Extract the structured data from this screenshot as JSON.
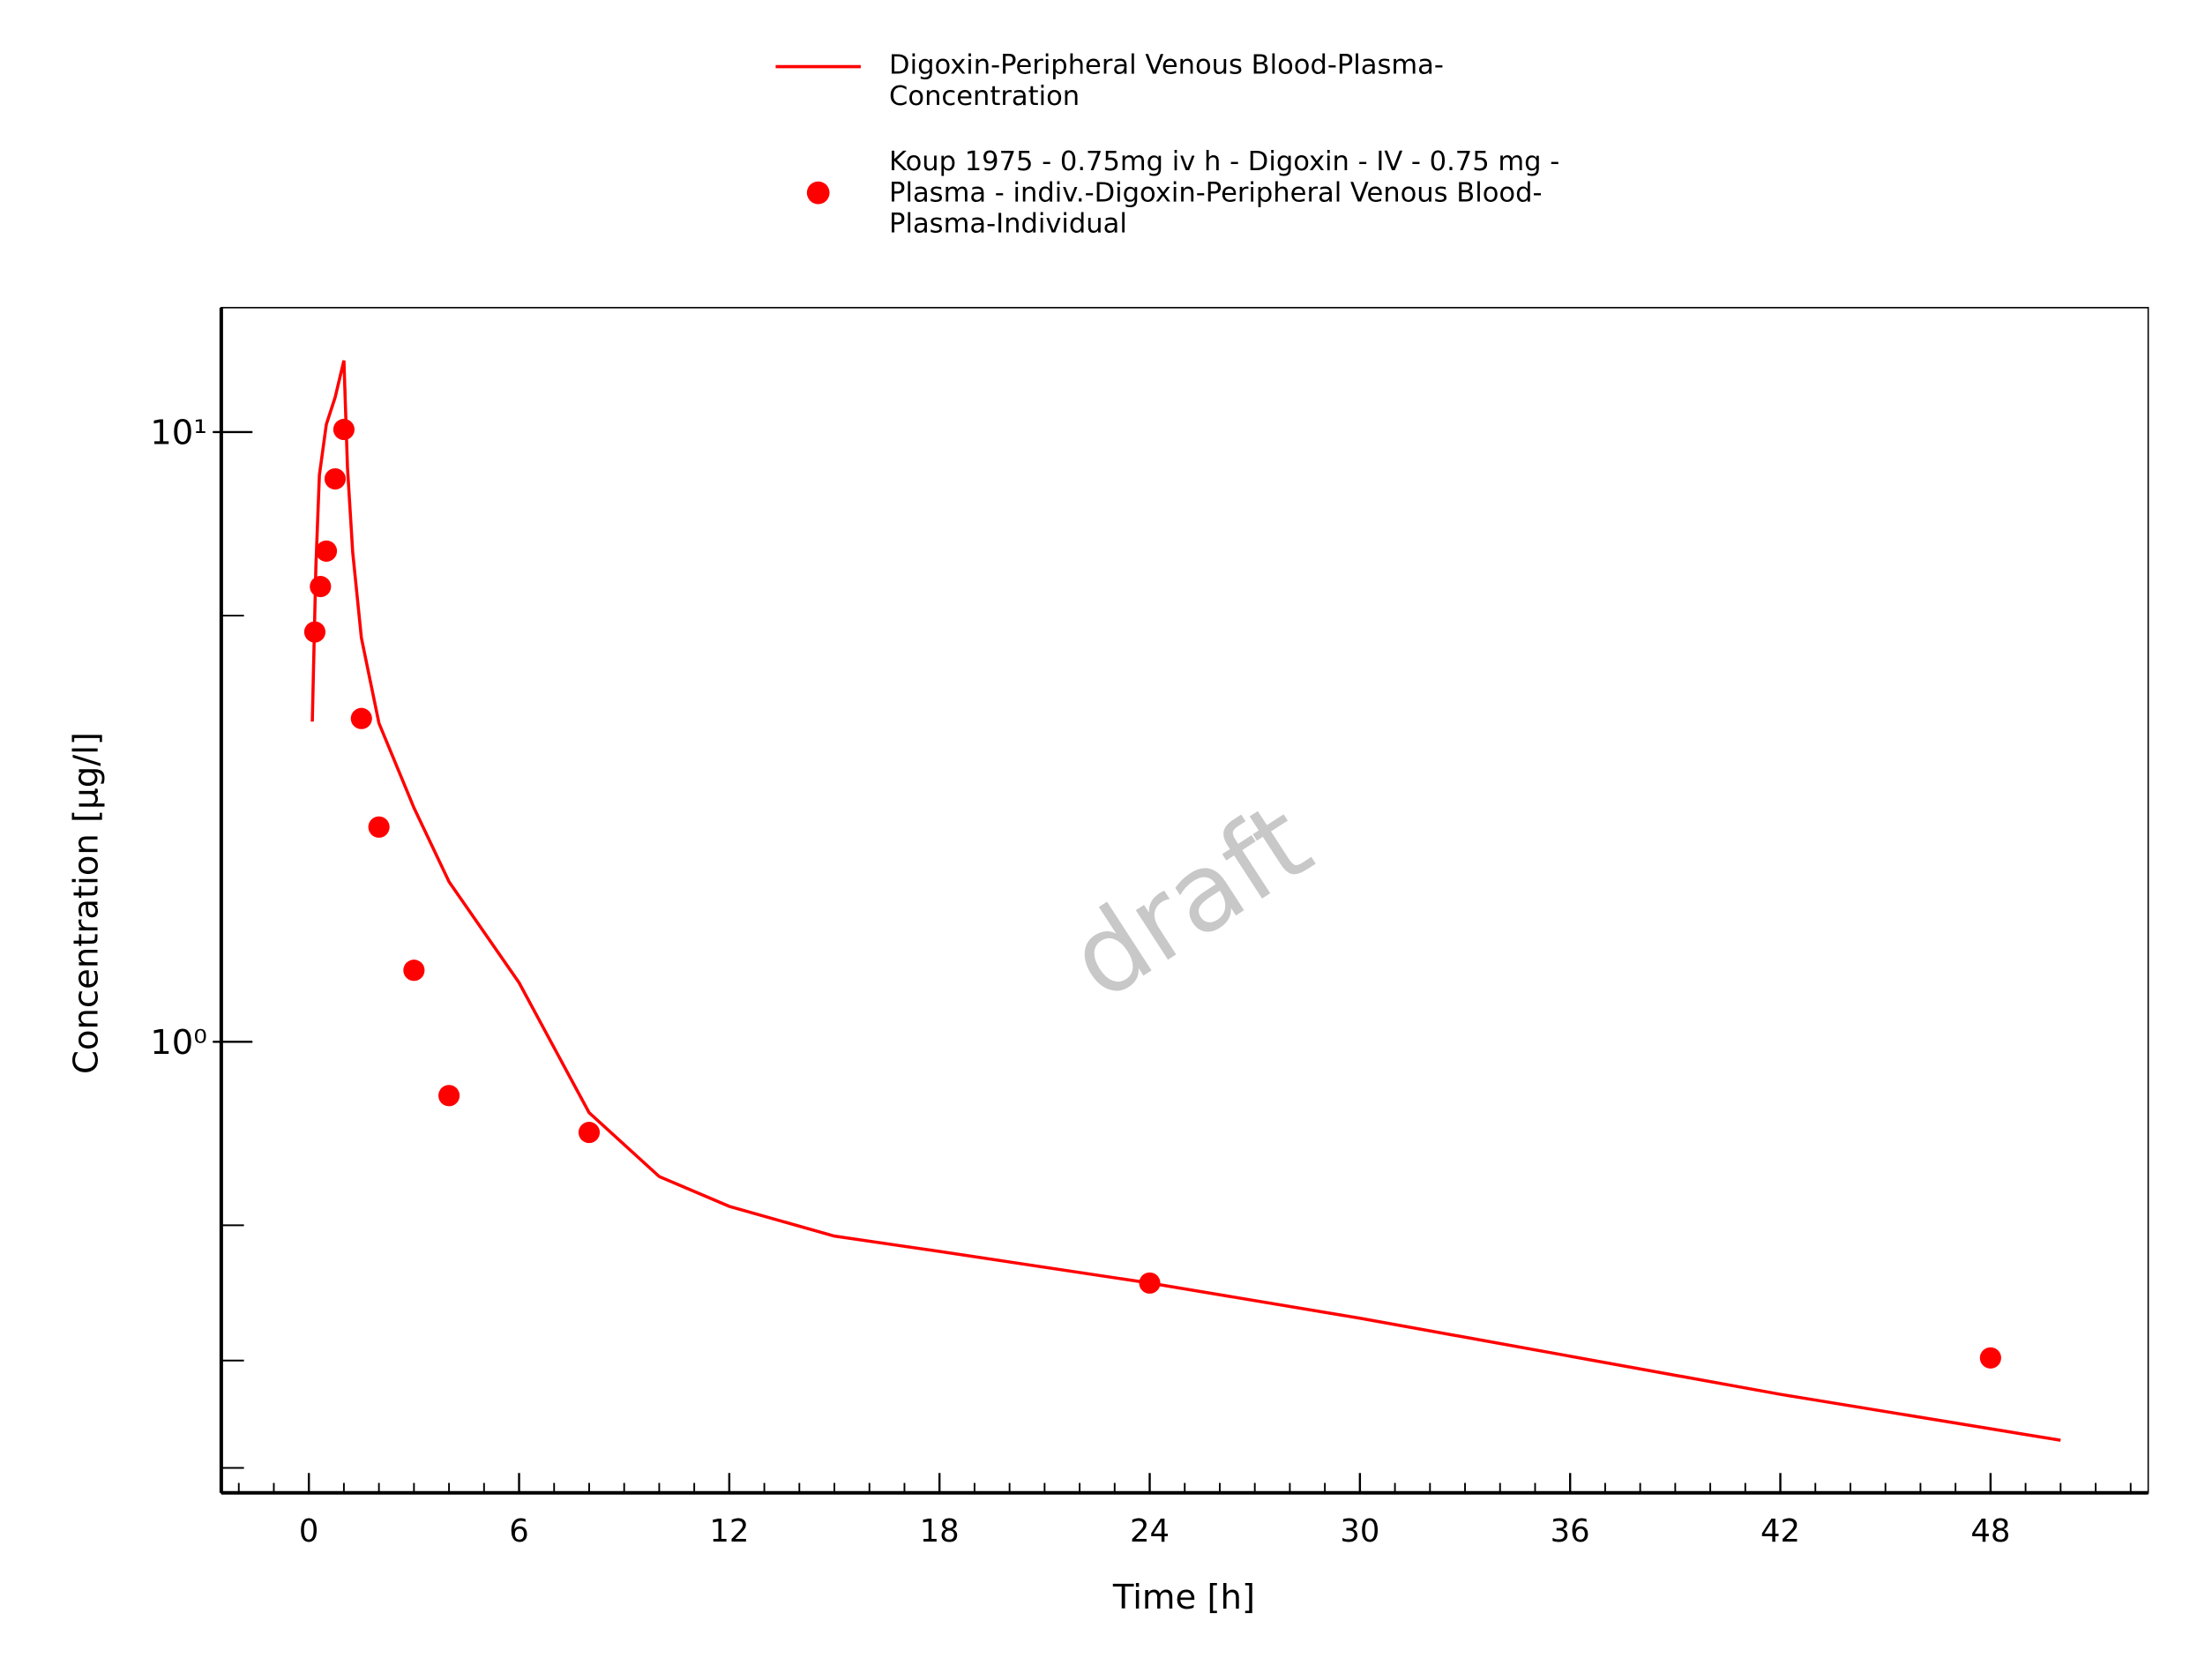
{
  "chart_data": {
    "type": "line",
    "xlabel": "Time [h]",
    "ylabel": "Concentration [µg/l]",
    "watermark": "draft",
    "xlim": [
      -2.5,
      52.5
    ],
    "xticks": [
      0,
      6,
      12,
      18,
      24,
      30,
      36,
      42,
      48
    ],
    "xminor_step": 1,
    "ylim": [
      0.182,
      16
    ],
    "yscale": "log",
    "yticks": [
      {
        "value": 1,
        "label": "10⁰"
      },
      {
        "value": 10,
        "label": "10¹"
      }
    ],
    "yminor_ticks": [
      0.2,
      0.3,
      0.5,
      5
    ],
    "legend": "top",
    "series": [
      {
        "name": "Digoxin-Peripheral Venous Blood-Plasma-Concentration",
        "style": "line",
        "color": "#ff0000",
        "x": [
          0.1,
          0.2,
          0.3,
          0.5,
          0.75,
          1.0,
          1.1,
          1.25,
          1.5,
          2,
          3,
          4,
          6,
          8,
          10,
          12,
          15,
          18,
          24,
          30,
          36,
          42,
          50
        ],
        "values": [
          3.35,
          6.0,
          8.5,
          10.3,
          11.4,
          13.1,
          8.76,
          6.35,
          4.6,
          3.33,
          2.42,
          1.83,
          1.25,
          0.765,
          0.601,
          0.537,
          0.48,
          0.453,
          0.402,
          0.352,
          0.305,
          0.264,
          0.222
        ]
      },
      {
        "name": "Koup 1975 - 0.75mg iv h - Digoxin - IV - 0.75 mg - Plasma - indiv.-Digoxin-Peripheral Venous Blood-Plasma-Individual",
        "style": "markers",
        "color": "#ff0000",
        "x": [
          0.17,
          0.33,
          0.5,
          0.75,
          1.0,
          1.5,
          2,
          3,
          4,
          8,
          24,
          48
        ],
        "values": [
          4.7,
          5.58,
          6.38,
          8.38,
          10.1,
          3.39,
          2.25,
          1.31,
          0.816,
          0.71,
          0.402,
          0.303
        ]
      }
    ]
  }
}
